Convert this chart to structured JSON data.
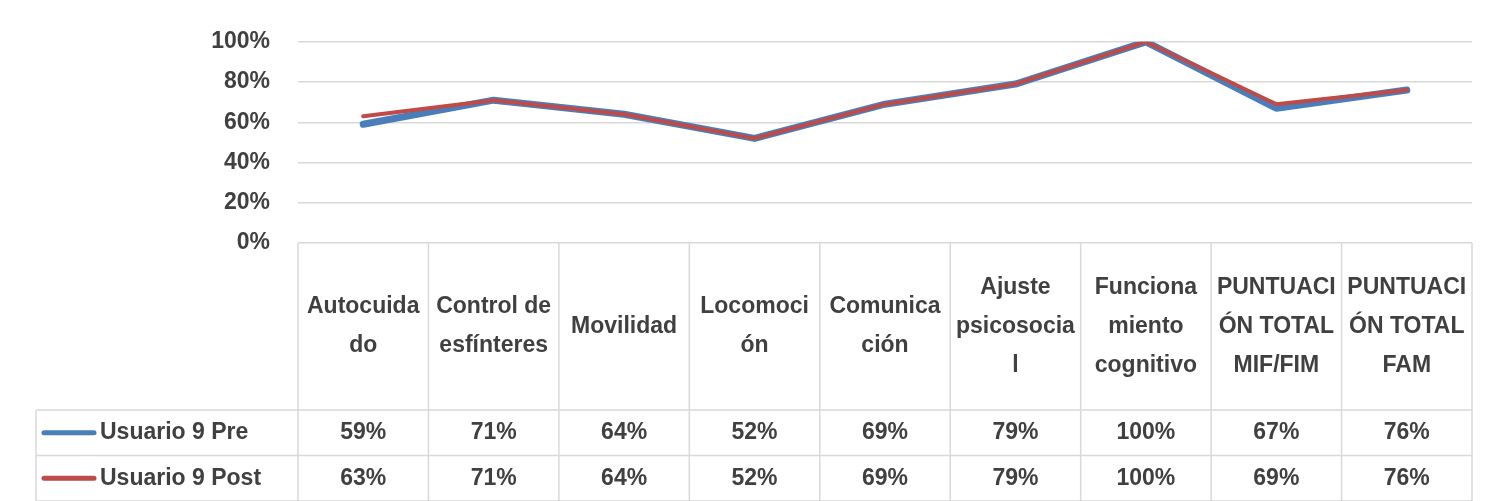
{
  "chart_data": {
    "type": "line",
    "categories": [
      "Autocuidado",
      "Control de esfínteres",
      "Movilidad",
      "Locomoción",
      "Comunicación",
      "Ajuste psicosocial",
      "Funcionamiento cognitivo",
      "PUNTUACIÓN TOTAL MIF/FIM",
      "PUNTUACIÓN TOTAL FAM"
    ],
    "series": [
      {
        "name": "Usuario 9 Pre",
        "color": "#4a7ebb",
        "values": [
          59,
          71,
          64,
          52,
          69,
          79,
          100,
          67,
          76
        ],
        "value_labels": [
          "59%",
          "71%",
          "64%",
          "52%",
          "69%",
          "79%",
          "100%",
          "67%",
          "76%"
        ]
      },
      {
        "name": "Usuario 9 Post",
        "color": "#be4b48",
        "values": [
          63,
          71,
          64,
          52,
          69,
          79,
          100,
          69,
          76
        ],
        "value_labels": [
          "63%",
          "71%",
          "64%",
          "52%",
          "69%",
          "79%",
          "100%",
          "69%",
          "76%"
        ]
      }
    ],
    "ylim": [
      0,
      100
    ],
    "yticks": [
      {
        "value": 0,
        "label": "0%"
      },
      {
        "value": 20,
        "label": "20%"
      },
      {
        "value": 40,
        "label": "40%"
      },
      {
        "value": 60,
        "label": "60%"
      },
      {
        "value": 80,
        "label": "80%"
      },
      {
        "value": 100,
        "label": "100%"
      }
    ],
    "grid": "y",
    "legend": "bottom",
    "marker": "none",
    "line_style": "solid"
  }
}
